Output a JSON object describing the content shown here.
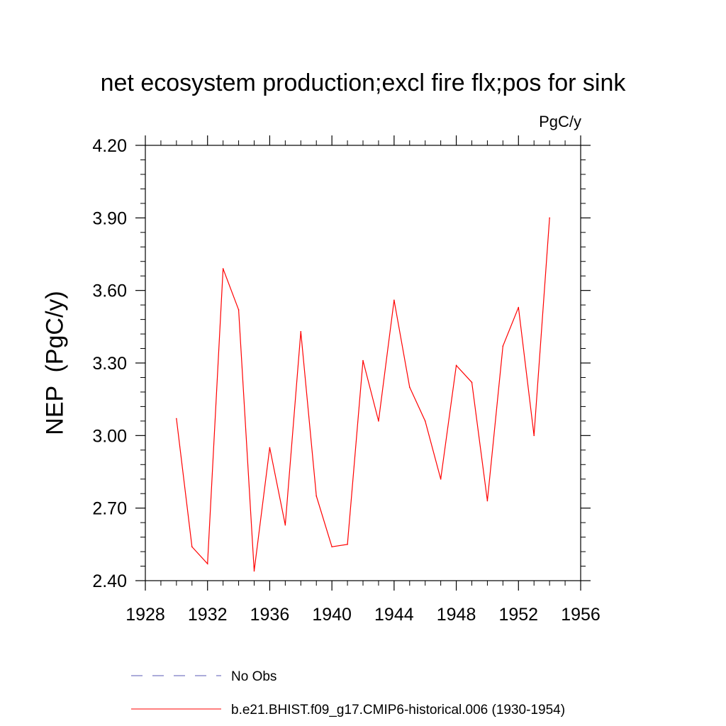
{
  "chart_data": {
    "type": "line",
    "title": "net ecosystem production;excl fire flx;pos for sink",
    "units": "PgC/y",
    "ylabel": "NEP  (PgC/y)",
    "xlabel": "",
    "xlim": [
      1928,
      1956
    ],
    "ylim": [
      2.4,
      4.2
    ],
    "x_ticks": [
      "1928",
      "1932",
      "1936",
      "1940",
      "1944",
      "1948",
      "1952",
      "1956"
    ],
    "y_ticks": [
      "2.40",
      "2.70",
      "3.00",
      "3.30",
      "3.60",
      "3.90",
      "4.20"
    ],
    "grid": false,
    "legend_position": "bottom",
    "series": [
      {
        "name": "No Obs",
        "color": "#5a5ab4",
        "style": "dashed",
        "x": [],
        "y": []
      },
      {
        "name": "b.e21.BHIST.f09_g17.CMIP6-historical.006 (1930-1954)",
        "color": "#ff0000",
        "style": "solid",
        "x": [
          1930,
          1931,
          1932,
          1933,
          1934,
          1935,
          1936,
          1937,
          1938,
          1939,
          1940,
          1941,
          1942,
          1943,
          1944,
          1945,
          1946,
          1947,
          1948,
          1949,
          1950,
          1951,
          1952,
          1953,
          1954
        ],
        "y": [
          3.07,
          2.54,
          2.47,
          3.69,
          3.52,
          2.44,
          2.95,
          2.63,
          3.43,
          2.75,
          2.54,
          2.55,
          3.31,
          3.06,
          3.56,
          3.2,
          3.06,
          2.82,
          3.29,
          3.22,
          2.73,
          3.37,
          3.53,
          3.0,
          3.9
        ]
      }
    ]
  }
}
